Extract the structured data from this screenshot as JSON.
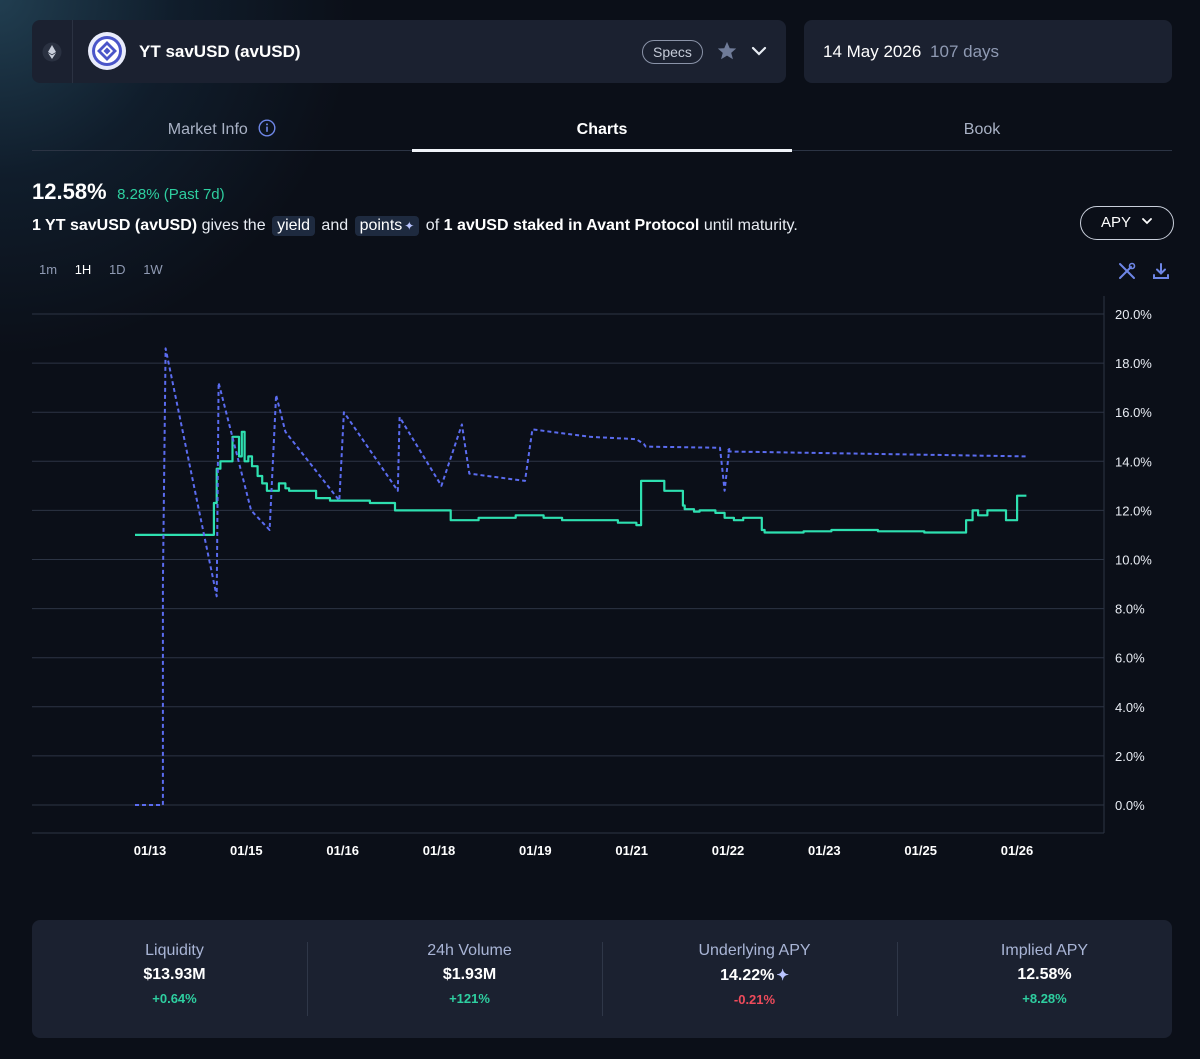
{
  "market": {
    "name": "YT savUSD (avUSD)",
    "specs_label": "Specs",
    "maturity_date": "14 May 2026",
    "days_left": "107 days"
  },
  "tabs": [
    {
      "label": "Market Info"
    },
    {
      "label": "Charts"
    },
    {
      "label": "Book"
    }
  ],
  "summary": {
    "implied_apy": "12.58%",
    "change": "8.28% (Past 7d)",
    "desc_amount": "1 YT savUSD (avUSD)",
    "desc_gives": "gives the",
    "desc_yield": "yield",
    "desc_and": "and",
    "desc_points": "points",
    "desc_of": "of",
    "desc_asset": "1 avUSD staked in Avant Protocol",
    "desc_until": "until maturity."
  },
  "metric_selector": "APY",
  "intervals": [
    "1m",
    "1H",
    "1D",
    "1W"
  ],
  "selected_interval": "1H",
  "colors": {
    "implied": "#2ee0b0",
    "underlying": "#5b6cf0",
    "positive": "#2ecfa0",
    "negative": "#ef4b5b"
  },
  "chart_data": {
    "type": "line",
    "x_ticks": [
      "01/13",
      "01/15",
      "01/16",
      "01/18",
      "01/19",
      "01/21",
      "01/22",
      "01/23",
      "01/25",
      "01/26"
    ],
    "y_ticks": [
      "20.0%",
      "18.0%",
      "16.0%",
      "14.0%",
      "12.0%",
      "10.0%",
      "8.0%",
      "6.0%",
      "4.0%",
      "2.0%",
      "0.0%"
    ],
    "ylim": [
      0,
      20
    ],
    "xlim": [
      0,
      9.8
    ],
    "series": [
      {
        "style": "solid",
        "x": [
          0,
          0.85,
          0.85,
          0.88,
          0.88,
          0.92,
          0.92,
          1.05,
          1.05,
          1.12,
          1.12,
          1.15,
          1.15,
          1.18,
          1.18,
          1.22,
          1.22,
          1.26,
          1.26,
          1.32,
          1.32,
          1.37,
          1.37,
          1.42,
          1.42,
          1.55,
          1.55,
          1.62,
          1.62,
          1.66,
          1.66,
          1.95,
          1.95,
          2.1,
          2.1,
          2.53,
          2.53,
          2.8,
          2.8,
          3.4,
          3.4,
          3.6,
          3.6,
          3.7,
          3.7,
          4.1,
          4.1,
          4.4,
          4.4,
          4.6,
          4.6,
          5.2,
          5.2,
          5.4,
          5.4,
          5.45,
          5.45,
          5.7,
          5.7,
          5.9,
          5.9,
          5.92,
          5.92,
          6.02,
          6.02,
          6.08,
          6.08,
          6.25,
          6.25,
          6.35,
          6.35,
          6.45,
          6.45,
          6.55,
          6.55,
          6.75,
          6.75,
          6.78,
          6.78,
          7.2,
          7.2,
          7.5,
          7.5,
          8.0,
          8.0,
          8.5,
          8.5,
          8.95,
          8.95,
          9.02,
          9.02,
          9.08,
          9.08,
          9.18,
          9.18,
          9.38,
          9.38,
          9.5,
          9.5,
          9.6
        ],
        "y": [
          11.0,
          11.0,
          12.3,
          12.3,
          13.7,
          13.7,
          14.0,
          14.0,
          15.0,
          15.0,
          14.2,
          14.2,
          15.2,
          15.2,
          14.0,
          14.0,
          14.2,
          14.2,
          13.8,
          13.8,
          13.4,
          13.4,
          13.1,
          13.1,
          12.8,
          12.8,
          13.1,
          13.1,
          12.9,
          12.9,
          12.8,
          12.8,
          12.5,
          12.5,
          12.4,
          12.4,
          12.3,
          12.3,
          12.0,
          12.0,
          11.6,
          11.6,
          11.6,
          11.6,
          11.7,
          11.7,
          11.8,
          11.8,
          11.7,
          11.7,
          11.6,
          11.6,
          11.5,
          11.5,
          11.4,
          11.4,
          13.2,
          13.2,
          12.8,
          12.8,
          12.2,
          12.2,
          12.05,
          12.05,
          11.95,
          11.95,
          12.0,
          12.0,
          11.9,
          11.9,
          11.7,
          11.7,
          11.6,
          11.6,
          11.7,
          11.7,
          11.2,
          11.2,
          11.1,
          11.1,
          11.15,
          11.15,
          11.2,
          11.2,
          11.15,
          11.15,
          11.1,
          11.1,
          11.6,
          11.6,
          12.0,
          12.0,
          11.8,
          11.8,
          12.0,
          12.0,
          11.6,
          11.6,
          12.6,
          12.6
        ]
      },
      {
        "style": "dashed",
        "x": [
          0,
          0.3,
          0.3,
          0.33,
          0.88,
          0.9,
          1.25,
          1.45,
          1.52,
          1.62,
          2.2,
          2.25,
          2.83,
          2.85,
          3.3,
          3.52,
          3.6,
          4.2,
          4.28,
          4.9,
          5.4,
          5.48,
          5.48,
          5.5,
          6.3,
          6.35,
          6.35,
          6.4,
          6.37,
          6.4,
          9.6
        ],
        "y": [
          0.0,
          0.0,
          9.0,
          18.6,
          8.5,
          17.2,
          12.0,
          11.2,
          16.7,
          15.2,
          12.4,
          16.0,
          12.8,
          15.8,
          13.0,
          15.5,
          13.5,
          13.2,
          15.3,
          15.0,
          14.9,
          14.7,
          14.7,
          14.6,
          14.55,
          12.8,
          12.8,
          14.5,
          14.4,
          14.4,
          14.2
        ]
      }
    ]
  },
  "stats": [
    {
      "label": "Liquidity",
      "value": "$13.93M",
      "change": "+0.64%",
      "trend": "up"
    },
    {
      "label": "24h Volume",
      "value": "$1.93M",
      "change": "+121%",
      "trend": "up"
    },
    {
      "label": "Underlying APY",
      "value": "14.22%",
      "change": "-0.21%",
      "trend": "down"
    },
    {
      "label": "Implied APY",
      "value": "12.58%",
      "change": "+8.28%",
      "trend": "up"
    }
  ]
}
